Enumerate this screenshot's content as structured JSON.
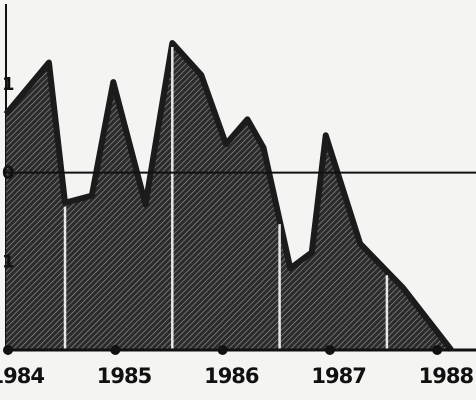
{
  "chart_data": {
    "type": "area",
    "title": "",
    "xlabel": "",
    "ylabel": "",
    "x_tick_labels": [
      "1984",
      "1985",
      "1986",
      "1987",
      "1988"
    ],
    "y_tick_labels": [
      "1",
      "0",
      "1"
    ],
    "y_tick_values": [
      1.5,
      1.0,
      0.5
    ],
    "xlim": [
      1983.95,
      1988.2
    ],
    "ylim": [
      0,
      1.95
    ],
    "reference_line_y": 1.0,
    "series": [
      {
        "x": [
          1983.95,
          1984.35,
          1984.5,
          1984.75,
          1984.95,
          1985.25,
          1985.5,
          1985.77,
          1986.0,
          1986.2,
          1986.35,
          1986.6,
          1986.8,
          1986.93,
          1987.25,
          1987.65,
          1988.1
        ],
        "y": [
          1.33,
          1.62,
          0.83,
          0.87,
          1.51,
          0.82,
          1.73,
          1.55,
          1.16,
          1.3,
          1.14,
          0.46,
          0.55,
          1.21,
          0.6,
          0.35,
          0.0
        ],
        "color": "#1b1b1b"
      }
    ],
    "vertical_markers_x": [
      1984.5,
      1985.5,
      1986.5,
      1987.5
    ],
    "grid": false,
    "legend": "none"
  }
}
